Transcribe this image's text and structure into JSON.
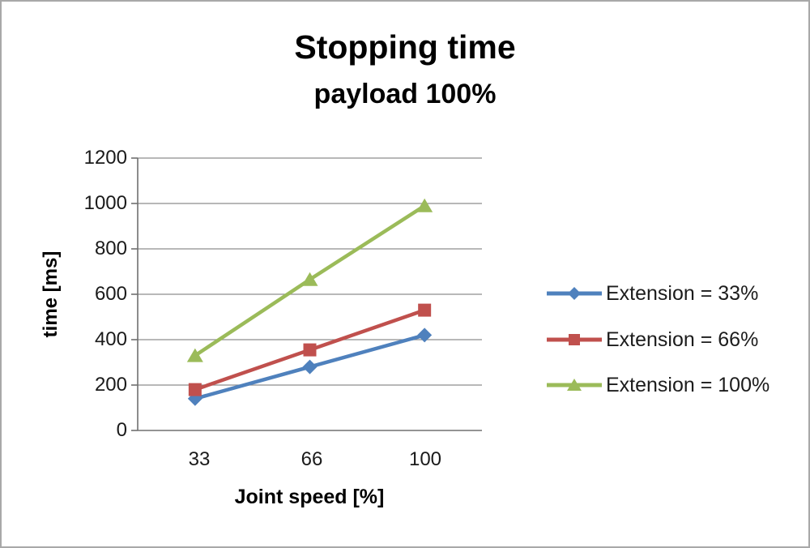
{
  "window": {
    "background": "#ffffff",
    "border_color": "#a8a8a8"
  },
  "chart_data": {
    "type": "line",
    "title": "Stopping time",
    "subtitle": "payload 100%",
    "xlabel": "Joint speed [%]",
    "ylabel": "time [ms]",
    "categories": [
      "33",
      "66",
      "100"
    ],
    "yticks": [
      "0",
      "200",
      "400",
      "600",
      "800",
      "1000",
      "1200"
    ],
    "ylim": [
      0,
      1200
    ],
    "grid": "horizontal",
    "legend_position": "right",
    "colors": {
      "gridline": "#8e8e8e",
      "axis": "#707070",
      "text": "#1a1a1a"
    },
    "series": [
      {
        "name": "Extension = 33%",
        "marker": "diamond",
        "color": "#4F81BD",
        "values": [
          140,
          280,
          420
        ]
      },
      {
        "name": "Extension = 66%",
        "marker": "square",
        "color": "#C0504D",
        "values": [
          180,
          355,
          530
        ]
      },
      {
        "name": "Extension = 100%",
        "marker": "triangle",
        "color": "#9BBB59",
        "values": [
          330,
          665,
          990
        ]
      }
    ]
  }
}
